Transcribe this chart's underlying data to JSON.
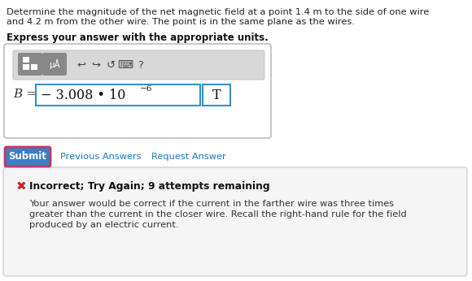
{
  "bg_color": "#ffffff",
  "question_line1": "Determine the magnitude of the net magnetic field at a point 1.4 m to the side of one wire",
  "question_line2": "and 4.2 m from the other wire. The point is in the same plane as the wires.",
  "bold_instruction": "Express your answer with the appropriate units.",
  "b_label": "B =",
  "answer_main": "− 3.008 • 10",
  "exponent": "−6",
  "unit": "T",
  "submit_text": "Submit",
  "submit_bg": "#3a7fc1",
  "submit_border": "#cc3366",
  "prev_answers_text": "Previous Answers",
  "request_answer_text": "Request Answer",
  "link_color": "#1a7abf",
  "error_icon": "✖",
  "error_icon_color": "#cc2222",
  "error_bold_text": "Incorrect; Try Again; 9 attempts remaining",
  "error_line1": "Your answer would be correct if the current in the farther wire was three times",
  "error_line2": "greater than the current in the closer wire. Recall the right-hand rule for the field",
  "error_line3": "produced by an electric current.",
  "toolbar_bg": "#d8d8d8",
  "outer_box_border": "#b0b0b0",
  "input_box_border": "#3a8fbf",
  "error_box_border": "#d0d0d0",
  "error_box_bg": "#f5f5f5",
  "mua_bg": "#888888",
  "icon_btn_bg": "#888888",
  "q_fontsize": 8.2,
  "bold_fontsize": 8.5,
  "formula_fontsize": 11.5,
  "submit_fontsize": 8.5,
  "link_fontsize": 8.2,
  "error_bold_fontsize": 8.8,
  "error_body_fontsize": 8.2
}
